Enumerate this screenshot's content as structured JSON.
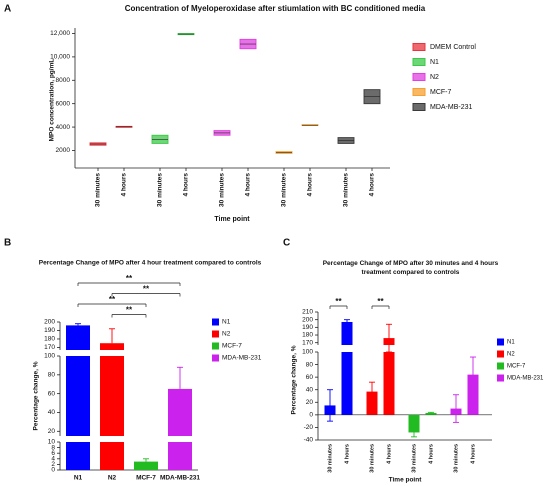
{
  "chart_data": [
    {
      "panel": "A",
      "type": "floating_bar",
      "title": "Concentration of Myeloperoxidase after stiumlation with BC conditioned media",
      "ylabel": "MPO concentration, pg/mL",
      "xlabel": "Time point",
      "categories": [
        "30 minutes",
        "4 hours"
      ],
      "ylim": [
        500,
        12300
      ],
      "yticks": [
        2000,
        4000,
        6000,
        8000,
        {
          "value": 10000,
          "label": "10,000"
        },
        {
          "value": 12000,
          "label": "12,000"
        }
      ],
      "legend": "right",
      "series": [
        {
          "name": "DMEM Control",
          "color": "#e8353d",
          "low": [
            2450,
            3980
          ],
          "high": [
            2650,
            4060
          ],
          "median": [
            2550,
            4020
          ]
        },
        {
          "name": "N1",
          "color": "#3cc84a",
          "low": [
            2600,
            11900
          ],
          "high": [
            3300,
            12000
          ],
          "median": [
            2950,
            11950
          ]
        },
        {
          "name": "N2",
          "color": "#e040e0",
          "low": [
            3300,
            10700
          ],
          "high": [
            3700,
            11500
          ],
          "median": [
            3500,
            11100
          ]
        },
        {
          "name": "MCF-7",
          "color": "#f5a030",
          "low": [
            1750,
            4130
          ],
          "high": [
            1900,
            4200
          ],
          "median": [
            1820,
            4160
          ]
        },
        {
          "name": "MDA-MB-231",
          "color": "#3a3a3a",
          "low": [
            2600,
            6000
          ],
          "high": [
            3100,
            7200
          ],
          "median": [
            2850,
            6600
          ]
        }
      ]
    },
    {
      "panel": "B",
      "type": "bar",
      "title": "Percentage Change of MPO after 4 hour treatment compared to controls",
      "ylabel": "Percentage change, %",
      "categories": [
        "N1",
        "N2",
        "MCF-7",
        "MDA-MB-231"
      ],
      "values": [
        196,
        175,
        3,
        65
      ],
      "errors": [
        2,
        17,
        1,
        23
      ],
      "colors": [
        "#0000ff",
        "#ff0000",
        "#22bb22",
        "#cc22ee"
      ],
      "error_direction": "up",
      "legend": "right",
      "segments": [
        {
          "ylim": [
            0,
            10
          ],
          "yticks": [
            0,
            2,
            4,
            6,
            8,
            10
          ]
        },
        {
          "ylim": [
            15,
            100
          ],
          "yticks": [
            20,
            40,
            60,
            80,
            100
          ]
        },
        {
          "ylim": [
            167,
            200
          ],
          "yticks": [
            170,
            180,
            190,
            200
          ]
        }
      ],
      "annotations": [
        {
          "label": "**",
          "between": [
            0,
            3
          ]
        },
        {
          "label": "**",
          "between": [
            1,
            3
          ]
        },
        {
          "label": "**",
          "between": [
            0,
            2
          ]
        },
        {
          "label": "**",
          "between": [
            1,
            2
          ]
        }
      ]
    },
    {
      "panel": "C",
      "type": "grouped_bar",
      "title": "Percentage Change of MPO after 30 minutes and 4 hours treatment compared to controls",
      "ylabel": "Percentage change, %",
      "xlabel": "Time point",
      "categories": [
        "30 minutes",
        "4 hours"
      ],
      "error_direction": "both",
      "legend": "right",
      "series": [
        {
          "name": "N1",
          "color": "#0000ff",
          "values": [
            15,
            197
          ],
          "errors": [
            25,
            3
          ]
        },
        {
          "name": "N2",
          "color": "#ff0000",
          "values": [
            37,
            176
          ],
          "errors": [
            15,
            18
          ]
        },
        {
          "name": "MCF-7",
          "color": "#22bb22",
          "values": [
            -28,
            3
          ],
          "errors": [
            7,
            1
          ]
        },
        {
          "name": "MDA-MB-231",
          "color": "#cc22ee",
          "values": [
            10,
            64
          ],
          "errors": [
            22,
            28
          ]
        }
      ],
      "segments": [
        {
          "ylim": [
            -40,
            100
          ],
          "yticks": [
            -40,
            -20,
            0,
            20,
            40,
            60,
            80,
            100
          ]
        },
        {
          "ylim": [
            167,
            210
          ],
          "yticks": [
            170,
            180,
            190,
            200,
            210
          ]
        }
      ],
      "annotations": [
        {
          "label": "**",
          "series": 0
        },
        {
          "label": "**",
          "series": 1
        }
      ]
    }
  ]
}
